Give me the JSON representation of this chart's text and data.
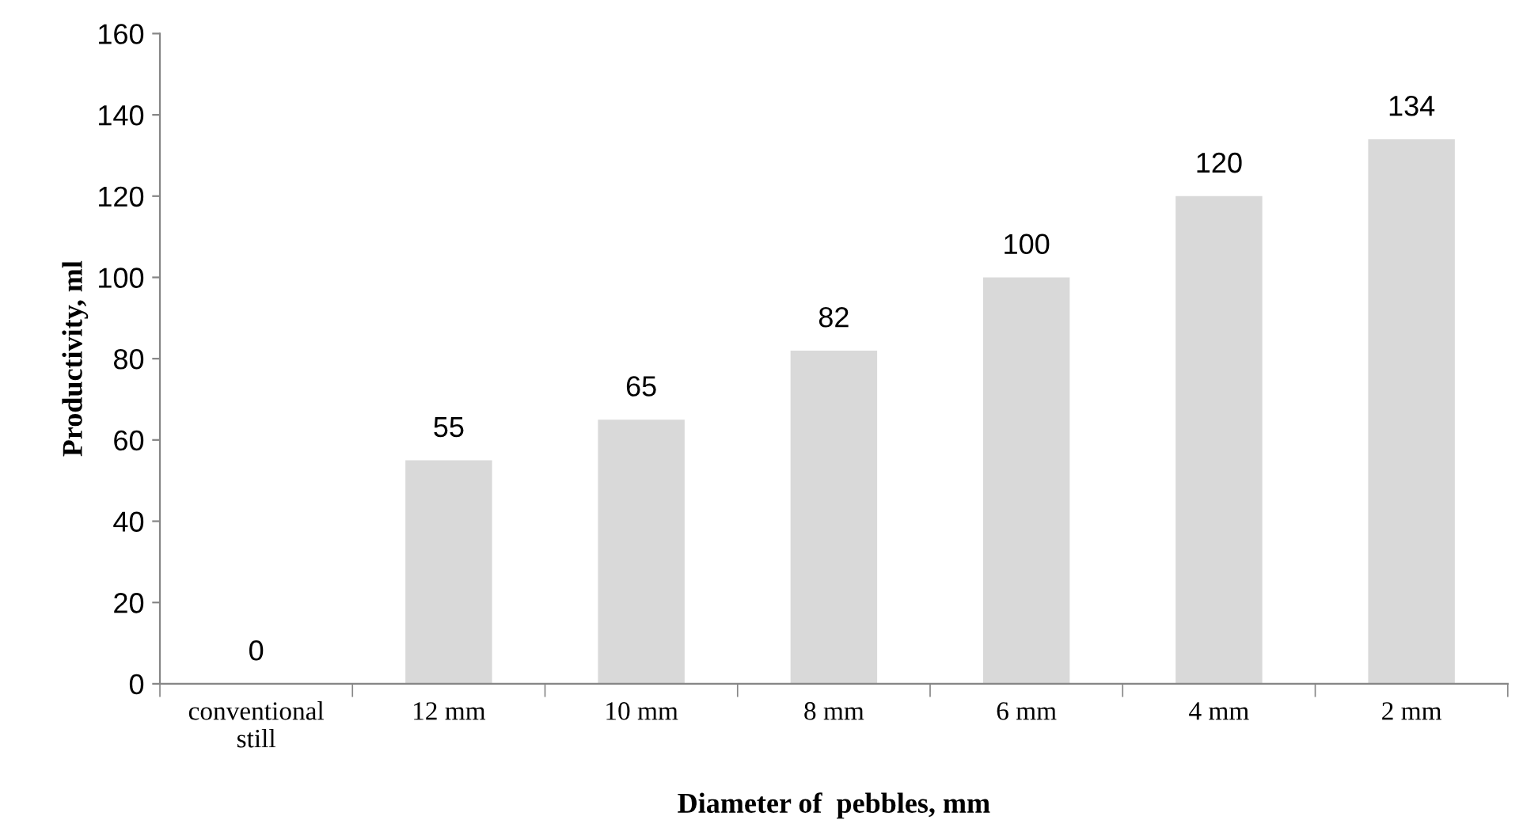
{
  "chart_data": {
    "type": "bar",
    "xlabel": "Diameter of  pebbles, mm",
    "ylabel": "Productivity, ml",
    "categories": [
      "conventional\nstill",
      "12 mm",
      "10 mm",
      "8 mm",
      "6 mm",
      "4 mm",
      "2 mm"
    ],
    "values": [
      0,
      55,
      65,
      82,
      100,
      120,
      134
    ],
    "color": "#d9d9d9",
    "ylim": [
      0,
      160
    ],
    "yticks": [
      0,
      20,
      40,
      60,
      80,
      100,
      120,
      140,
      160
    ],
    "grid": false,
    "data_labels": true
  }
}
